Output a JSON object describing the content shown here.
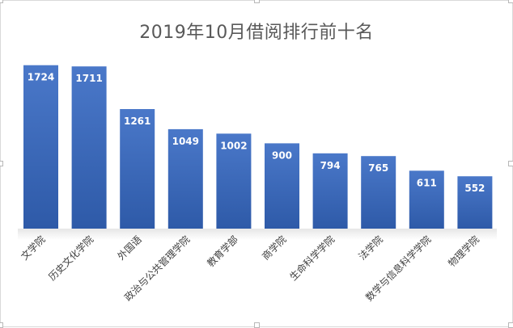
{
  "chart_data": {
    "type": "bar",
    "title": "2019年10月借阅排行前十名",
    "categories": [
      "文学院",
      "历史文化学院",
      "外国语",
      "政治与公共管理学院",
      "教育学部",
      "商学院",
      "生命科学学院",
      "法学院",
      "数学与信息科学学院",
      "物理学院"
    ],
    "values": [
      1724,
      1711,
      1261,
      1049,
      1002,
      900,
      794,
      765,
      611,
      552
    ],
    "data_labels": [
      "1724",
      "1711",
      "1261",
      "1049",
      "1002",
      "900",
      "794",
      "765",
      "611",
      "552"
    ],
    "ylim": [
      0,
      1900
    ],
    "grid": false,
    "legend": "none",
    "bar_color_top": "#4a78c9",
    "bar_color_bottom": "#2e5aa8",
    "label_color": "#ffffff",
    "category_color": "#404040",
    "title_color": "#595959"
  }
}
